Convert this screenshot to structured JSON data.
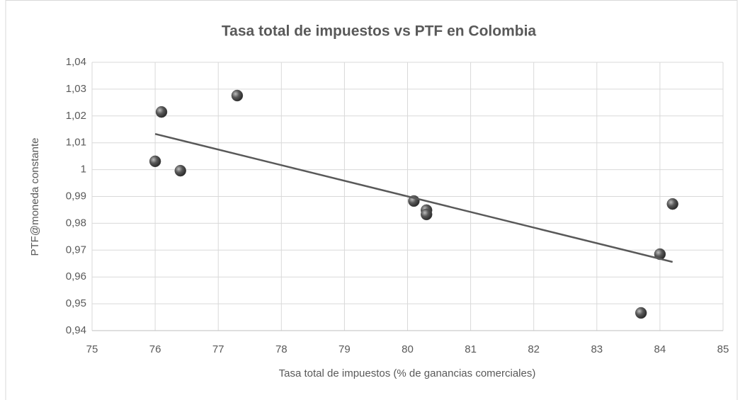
{
  "chart_data": {
    "type": "scatter",
    "title": "Tasa total de impuestos vs PTF en Colombia",
    "x_label": "Tasa total de impuestos (% de ganancias comerciales)",
    "y_label": "PTF@moneda constante",
    "x": [
      76.0,
      76.1,
      76.4,
      77.3,
      80.1,
      80.3,
      80.3,
      84.2,
      84.0,
      83.7
    ],
    "values": [
      1.0031,
      1.0215,
      0.9996,
      1.0276,
      0.9883,
      0.9849,
      0.9833,
      0.9872,
      0.9685,
      0.9466
    ],
    "color": "#595959",
    "trendline": {
      "x": [
        76.0,
        84.2
      ],
      "y": [
        1.0133,
        0.9656
      ],
      "color": "#595959"
    },
    "xlim": [
      75,
      85
    ],
    "xticks": [
      75,
      76,
      77,
      78,
      79,
      80,
      81,
      82,
      83,
      84,
      85
    ],
    "ylim": [
      0.94,
      1.04
    ],
    "yticks": [
      {
        "value": 0.94,
        "label": "0,94"
      },
      {
        "value": 0.95,
        "label": "0,95"
      },
      {
        "value": 0.96,
        "label": "0,96"
      },
      {
        "value": 0.97,
        "label": "0,97"
      },
      {
        "value": 0.98,
        "label": "0,98"
      },
      {
        "value": 0.99,
        "label": "0,99"
      },
      1,
      {
        "value": 1.01,
        "label": "1,01"
      },
      {
        "value": 1.02,
        "label": "1,02"
      },
      {
        "value": 1.03,
        "label": "1,03"
      },
      {
        "value": 1.04,
        "label": "1,04"
      }
    ],
    "grid": true
  }
}
